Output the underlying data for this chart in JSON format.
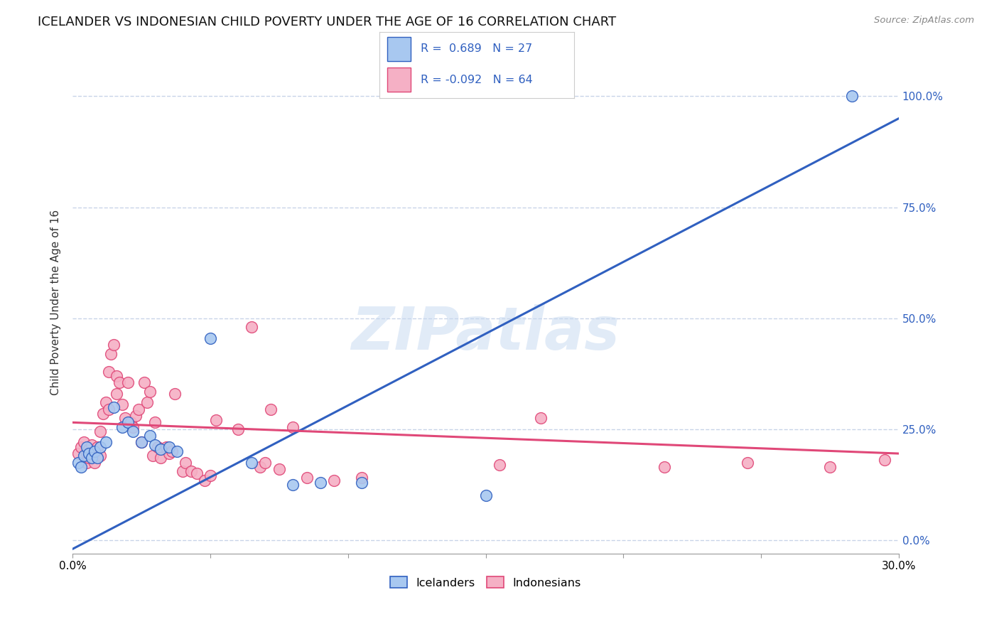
{
  "title": "ICELANDER VS INDONESIAN CHILD POVERTY UNDER THE AGE OF 16 CORRELATION CHART",
  "source": "Source: ZipAtlas.com",
  "ylabel": "Child Poverty Under the Age of 16",
  "xlim": [
    0.0,
    0.3
  ],
  "ylim": [
    -0.03,
    1.1
  ],
  "xticks": [
    0.0,
    0.05,
    0.1,
    0.15,
    0.2,
    0.25,
    0.3
  ],
  "xticklabels": [
    "0.0%",
    "",
    "",
    "",
    "",
    "",
    "30.0%"
  ],
  "ytick_positions": [
    0.0,
    0.25,
    0.5,
    0.75,
    1.0
  ],
  "ytick_labels_right": [
    "0.0%",
    "25.0%",
    "50.0%",
    "75.0%",
    "100.0%"
  ],
  "watermark": "ZIPatlas",
  "blue_R": 0.689,
  "pink_R": -0.092,
  "blue_N": 27,
  "pink_N": 64,
  "blue_line": [
    [
      0.0,
      -0.02
    ],
    [
      0.3,
      0.95
    ]
  ],
  "pink_line": [
    [
      0.0,
      0.265
    ],
    [
      0.3,
      0.195
    ]
  ],
  "blue_color": "#a8c8f0",
  "pink_color": "#f5b0c5",
  "blue_line_color": "#3060c0",
  "pink_line_color": "#e04878",
  "blue_scatter": [
    [
      0.002,
      0.175
    ],
    [
      0.003,
      0.165
    ],
    [
      0.004,
      0.19
    ],
    [
      0.005,
      0.21
    ],
    [
      0.006,
      0.195
    ],
    [
      0.007,
      0.185
    ],
    [
      0.008,
      0.2
    ],
    [
      0.009,
      0.185
    ],
    [
      0.01,
      0.21
    ],
    [
      0.012,
      0.22
    ],
    [
      0.015,
      0.3
    ],
    [
      0.018,
      0.255
    ],
    [
      0.02,
      0.265
    ],
    [
      0.022,
      0.245
    ],
    [
      0.025,
      0.22
    ],
    [
      0.028,
      0.235
    ],
    [
      0.03,
      0.215
    ],
    [
      0.032,
      0.205
    ],
    [
      0.035,
      0.21
    ],
    [
      0.038,
      0.2
    ],
    [
      0.05,
      0.455
    ],
    [
      0.065,
      0.175
    ],
    [
      0.08,
      0.125
    ],
    [
      0.09,
      0.13
    ],
    [
      0.105,
      0.13
    ],
    [
      0.15,
      0.1
    ],
    [
      0.283,
      1.0
    ]
  ],
  "pink_scatter": [
    [
      0.002,
      0.195
    ],
    [
      0.003,
      0.21
    ],
    [
      0.004,
      0.22
    ],
    [
      0.005,
      0.175
    ],
    [
      0.005,
      0.195
    ],
    [
      0.006,
      0.205
    ],
    [
      0.006,
      0.185
    ],
    [
      0.007,
      0.215
    ],
    [
      0.008,
      0.195
    ],
    [
      0.008,
      0.175
    ],
    [
      0.009,
      0.21
    ],
    [
      0.01,
      0.19
    ],
    [
      0.01,
      0.245
    ],
    [
      0.011,
      0.285
    ],
    [
      0.012,
      0.31
    ],
    [
      0.013,
      0.295
    ],
    [
      0.013,
      0.38
    ],
    [
      0.014,
      0.42
    ],
    [
      0.015,
      0.44
    ],
    [
      0.016,
      0.37
    ],
    [
      0.016,
      0.33
    ],
    [
      0.017,
      0.355
    ],
    [
      0.018,
      0.305
    ],
    [
      0.019,
      0.275
    ],
    [
      0.02,
      0.355
    ],
    [
      0.021,
      0.265
    ],
    [
      0.022,
      0.255
    ],
    [
      0.023,
      0.28
    ],
    [
      0.024,
      0.295
    ],
    [
      0.025,
      0.22
    ],
    [
      0.026,
      0.355
    ],
    [
      0.027,
      0.31
    ],
    [
      0.028,
      0.335
    ],
    [
      0.029,
      0.19
    ],
    [
      0.03,
      0.265
    ],
    [
      0.031,
      0.21
    ],
    [
      0.032,
      0.185
    ],
    [
      0.034,
      0.21
    ],
    [
      0.035,
      0.195
    ],
    [
      0.036,
      0.2
    ],
    [
      0.037,
      0.33
    ],
    [
      0.04,
      0.155
    ],
    [
      0.041,
      0.175
    ],
    [
      0.043,
      0.155
    ],
    [
      0.045,
      0.15
    ],
    [
      0.048,
      0.135
    ],
    [
      0.05,
      0.145
    ],
    [
      0.052,
      0.27
    ],
    [
      0.06,
      0.25
    ],
    [
      0.065,
      0.48
    ],
    [
      0.068,
      0.165
    ],
    [
      0.07,
      0.175
    ],
    [
      0.072,
      0.295
    ],
    [
      0.075,
      0.16
    ],
    [
      0.08,
      0.255
    ],
    [
      0.085,
      0.14
    ],
    [
      0.095,
      0.135
    ],
    [
      0.105,
      0.14
    ],
    [
      0.155,
      0.17
    ],
    [
      0.17,
      0.275
    ],
    [
      0.215,
      0.165
    ],
    [
      0.245,
      0.175
    ],
    [
      0.275,
      0.165
    ],
    [
      0.295,
      0.18
    ]
  ],
  "background_color": "#ffffff",
  "grid_color": "#c8d4e8",
  "title_fontsize": 13,
  "axis_label_fontsize": 11,
  "tick_fontsize": 11
}
